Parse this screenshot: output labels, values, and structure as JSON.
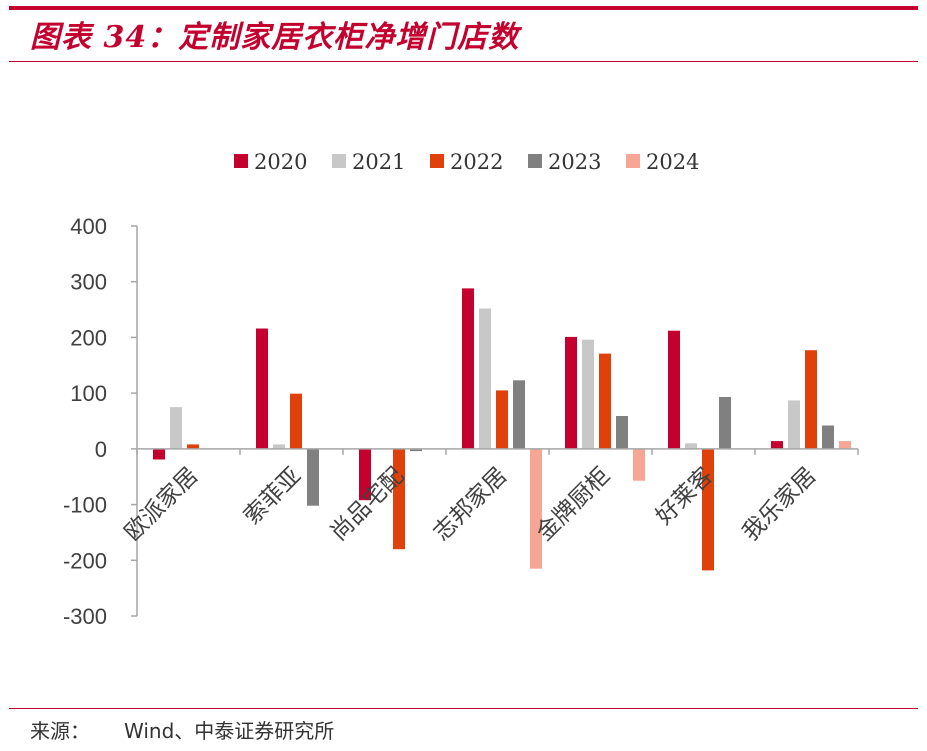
{
  "header": {
    "title": "图表 34：定制家居衣柜净增门店数"
  },
  "footer": {
    "source_label": "来源：",
    "source_text": "Wind、中泰证券研究所"
  },
  "colors": {
    "accent": "#c4002f",
    "rule": "#c4002f"
  },
  "chart_data": {
    "type": "bar",
    "title": "",
    "xlabel": "",
    "ylabel": "",
    "ylim": [
      -300,
      400
    ],
    "yticks": [
      400,
      300,
      200,
      100,
      0,
      -100,
      -200,
      -300
    ],
    "grid": false,
    "legend_position": "top",
    "categories": [
      "欧派家居",
      "索菲亚",
      "尚品宅配",
      "志邦家居",
      "金牌厨柜",
      "好莱客",
      "我乐家居"
    ],
    "series": [
      {
        "name": "2020",
        "color": "#c4002f",
        "values": [
          -19,
          216,
          -92,
          288,
          201,
          212,
          14
        ]
      },
      {
        "name": "2021",
        "color": "#c8c8c8",
        "values": [
          75,
          8,
          null,
          252,
          196,
          10,
          87
        ]
      },
      {
        "name": "2022",
        "color": "#e0400a",
        "values": [
          8,
          99,
          -180,
          105,
          171,
          -218,
          177
        ]
      },
      {
        "name": "2023",
        "color": "#808080",
        "values": [
          null,
          -102,
          -4,
          123,
          59,
          93,
          42
        ]
      },
      {
        "name": "2024",
        "color": "#f7a594",
        "values": [
          null,
          null,
          null,
          -215,
          -57,
          null,
          14
        ]
      }
    ]
  }
}
